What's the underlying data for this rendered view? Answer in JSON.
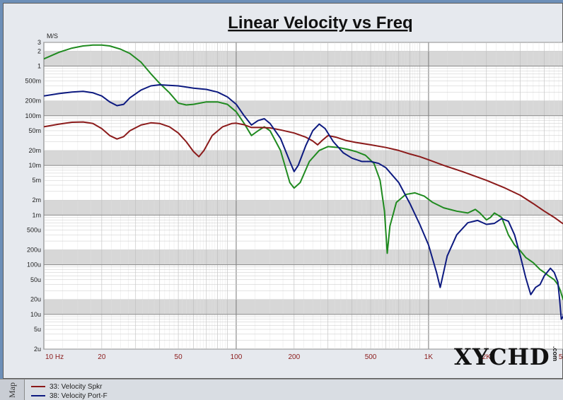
{
  "chart_data": {
    "type": "line",
    "title": "Linear Velocity vs Freq",
    "ylabel": "M/S",
    "xscale": "log",
    "yscale": "log",
    "xlim": [
      10,
      5000
    ],
    "ylim": [
      2e-06,
      3
    ],
    "grid": true,
    "x_ticks": [
      {
        "v": 10,
        "label": "10  Hz"
      },
      {
        "v": 20,
        "label": "20"
      },
      {
        "v": 50,
        "label": "50"
      },
      {
        "v": 100,
        "label": "100"
      },
      {
        "v": 200,
        "label": "200"
      },
      {
        "v": 500,
        "label": "500"
      },
      {
        "v": 1000,
        "label": "1K"
      },
      {
        "v": 2000,
        "label": "2K"
      },
      {
        "v": 5000,
        "label": "5K"
      }
    ],
    "y_ticks": [
      {
        "v": 3,
        "label": "3"
      },
      {
        "v": 2,
        "label": "2"
      },
      {
        "v": 1,
        "label": "1"
      },
      {
        "v": 0.5,
        "label": "500m"
      },
      {
        "v": 0.2,
        "label": "200m"
      },
      {
        "v": 0.1,
        "label": "100m"
      },
      {
        "v": 0.05,
        "label": "50m"
      },
      {
        "v": 0.02,
        "label": "20m"
      },
      {
        "v": 0.01,
        "label": "10m"
      },
      {
        "v": 0.005,
        "label": "5m"
      },
      {
        "v": 0.002,
        "label": "2m"
      },
      {
        "v": 0.001,
        "label": "1m"
      },
      {
        "v": 0.0005,
        "label": "500u"
      },
      {
        "v": 0.0002,
        "label": "200u"
      },
      {
        "v": 0.0001,
        "label": "100u"
      },
      {
        "v": 5e-05,
        "label": "50u"
      },
      {
        "v": 2e-05,
        "label": "20u"
      },
      {
        "v": 1e-05,
        "label": "10u"
      },
      {
        "v": 5e-06,
        "label": "5u"
      },
      {
        "v": 2e-06,
        "label": "2u"
      }
    ],
    "series": [
      {
        "name": "33: Velocity Spkr",
        "color": "#8b1a1a",
        "points": [
          [
            10,
            0.06
          ],
          [
            12,
            0.068
          ],
          [
            14,
            0.074
          ],
          [
            16,
            0.075
          ],
          [
            18,
            0.07
          ],
          [
            20,
            0.055
          ],
          [
            22,
            0.04
          ],
          [
            24,
            0.034
          ],
          [
            26,
            0.038
          ],
          [
            28,
            0.05
          ],
          [
            32,
            0.065
          ],
          [
            36,
            0.072
          ],
          [
            40,
            0.07
          ],
          [
            45,
            0.06
          ],
          [
            50,
            0.045
          ],
          [
            55,
            0.03
          ],
          [
            60,
            0.019
          ],
          [
            64,
            0.015
          ],
          [
            68,
            0.02
          ],
          [
            75,
            0.04
          ],
          [
            85,
            0.06
          ],
          [
            95,
            0.07
          ],
          [
            100,
            0.071
          ],
          [
            110,
            0.066
          ],
          [
            120,
            0.058
          ],
          [
            135,
            0.058
          ],
          [
            150,
            0.057
          ],
          [
            170,
            0.052
          ],
          [
            200,
            0.045
          ],
          [
            230,
            0.037
          ],
          [
            250,
            0.031
          ],
          [
            265,
            0.026
          ],
          [
            280,
            0.032
          ],
          [
            300,
            0.04
          ],
          [
            330,
            0.037
          ],
          [
            370,
            0.032
          ],
          [
            420,
            0.029
          ],
          [
            500,
            0.026
          ],
          [
            600,
            0.023
          ],
          [
            700,
            0.02
          ],
          [
            800,
            0.017
          ],
          [
            900,
            0.015
          ],
          [
            1000,
            0.013
          ],
          [
            1200,
            0.01
          ],
          [
            1500,
            0.0075
          ],
          [
            2000,
            0.005
          ],
          [
            2500,
            0.0035
          ],
          [
            3000,
            0.0025
          ],
          [
            3500,
            0.0017
          ],
          [
            4000,
            0.0012
          ],
          [
            4500,
            0.0009
          ],
          [
            5000,
            0.00067
          ]
        ]
      },
      {
        "name": "38: Velocity Port-F",
        "color": "#0d1a80",
        "points": [
          [
            10,
            0.25
          ],
          [
            12,
            0.28
          ],
          [
            14,
            0.3
          ],
          [
            16,
            0.31
          ],
          [
            18,
            0.29
          ],
          [
            20,
            0.25
          ],
          [
            22,
            0.19
          ],
          [
            24,
            0.16
          ],
          [
            26,
            0.17
          ],
          [
            28,
            0.23
          ],
          [
            32,
            0.33
          ],
          [
            36,
            0.4
          ],
          [
            40,
            0.42
          ],
          [
            50,
            0.4
          ],
          [
            60,
            0.36
          ],
          [
            70,
            0.34
          ],
          [
            80,
            0.3
          ],
          [
            90,
            0.24
          ],
          [
            100,
            0.17
          ],
          [
            110,
            0.1
          ],
          [
            120,
            0.065
          ],
          [
            130,
            0.08
          ],
          [
            140,
            0.087
          ],
          [
            150,
            0.07
          ],
          [
            170,
            0.035
          ],
          [
            190,
            0.012
          ],
          [
            200,
            0.0075
          ],
          [
            210,
            0.01
          ],
          [
            230,
            0.025
          ],
          [
            250,
            0.05
          ],
          [
            270,
            0.068
          ],
          [
            290,
            0.055
          ],
          [
            320,
            0.03
          ],
          [
            360,
            0.018
          ],
          [
            400,
            0.014
          ],
          [
            450,
            0.012
          ],
          [
            500,
            0.012
          ],
          [
            550,
            0.011
          ],
          [
            600,
            0.009
          ],
          [
            700,
            0.0045
          ],
          [
            800,
            0.0017
          ],
          [
            900,
            0.00065
          ],
          [
            1000,
            0.00025
          ],
          [
            1050,
            0.00013
          ],
          [
            1100,
            7e-05
          ],
          [
            1150,
            3.5e-05
          ],
          [
            1180,
            5.5e-05
          ],
          [
            1250,
            0.00015
          ],
          [
            1400,
            0.0004
          ],
          [
            1600,
            0.0007
          ],
          [
            1800,
            0.00078
          ],
          [
            2000,
            0.00065
          ],
          [
            2200,
            0.00068
          ],
          [
            2400,
            0.00085
          ],
          [
            2600,
            0.00075
          ],
          [
            2800,
            0.0004
          ],
          [
            3000,
            0.00015
          ],
          [
            3200,
            5.5e-05
          ],
          [
            3400,
            2.5e-05
          ],
          [
            3600,
            3.5e-05
          ],
          [
            3800,
            4e-05
          ],
          [
            4000,
            6e-05
          ],
          [
            4300,
            8.5e-05
          ],
          [
            4500,
            7e-05
          ],
          [
            4700,
            4.5e-05
          ],
          [
            4800,
            2e-05
          ],
          [
            4900,
            8e-06
          ],
          [
            5000,
            9e-06
          ],
          [
            5100,
            1.3e-05
          ]
        ]
      },
      {
        "name": "",
        "color": "#1f8a1f",
        "points": [
          [
            10,
            1.4
          ],
          [
            12,
            1.9
          ],
          [
            14,
            2.3
          ],
          [
            16,
            2.55
          ],
          [
            18,
            2.65
          ],
          [
            20,
            2.65
          ],
          [
            22,
            2.55
          ],
          [
            25,
            2.2
          ],
          [
            28,
            1.8
          ],
          [
            32,
            1.2
          ],
          [
            36,
            0.7
          ],
          [
            40,
            0.45
          ],
          [
            45,
            0.29
          ],
          [
            50,
            0.18
          ],
          [
            55,
            0.165
          ],
          [
            60,
            0.17
          ],
          [
            70,
            0.19
          ],
          [
            80,
            0.19
          ],
          [
            90,
            0.17
          ],
          [
            100,
            0.12
          ],
          [
            110,
            0.07
          ],
          [
            120,
            0.04
          ],
          [
            130,
            0.05
          ],
          [
            140,
            0.06
          ],
          [
            150,
            0.05
          ],
          [
            170,
            0.02
          ],
          [
            190,
            0.0045
          ],
          [
            200,
            0.0035
          ],
          [
            215,
            0.0045
          ],
          [
            240,
            0.012
          ],
          [
            270,
            0.02
          ],
          [
            300,
            0.024
          ],
          [
            340,
            0.023
          ],
          [
            380,
            0.021
          ],
          [
            420,
            0.019
          ],
          [
            470,
            0.016
          ],
          [
            520,
            0.011
          ],
          [
            560,
            0.005
          ],
          [
            590,
            0.0012
          ],
          [
            610,
            0.00017
          ],
          [
            630,
            0.0006
          ],
          [
            680,
            0.0018
          ],
          [
            760,
            0.0026
          ],
          [
            850,
            0.0028
          ],
          [
            950,
            0.0024
          ],
          [
            1050,
            0.0018
          ],
          [
            1200,
            0.0014
          ],
          [
            1400,
            0.0012
          ],
          [
            1600,
            0.0011
          ],
          [
            1750,
            0.0013
          ],
          [
            1850,
            0.0011
          ],
          [
            2000,
            0.0008
          ],
          [
            2100,
            0.0009
          ],
          [
            2200,
            0.0011
          ],
          [
            2400,
            0.0009
          ],
          [
            2600,
            0.0004
          ],
          [
            2800,
            0.00025
          ],
          [
            3000,
            0.00019
          ],
          [
            3200,
            0.00014
          ],
          [
            3500,
            0.00011
          ],
          [
            3800,
            8e-05
          ],
          [
            4000,
            7e-05
          ],
          [
            4200,
            6e-05
          ],
          [
            4500,
            5e-05
          ],
          [
            4700,
            4e-05
          ],
          [
            4850,
            3e-05
          ],
          [
            5000,
            2e-05
          ],
          [
            5100,
            2.5e-05
          ]
        ]
      }
    ]
  },
  "legend": {
    "items": [
      {
        "label": "33: Velocity Spkr",
        "color": "#8b1a1a"
      },
      {
        "label": "38: Velocity Port-F",
        "color": "#0d1a80"
      }
    ]
  },
  "side_tab": {
    "label": "Map"
  },
  "watermark": {
    "text": "XYCHD",
    "suffix": ".com"
  }
}
